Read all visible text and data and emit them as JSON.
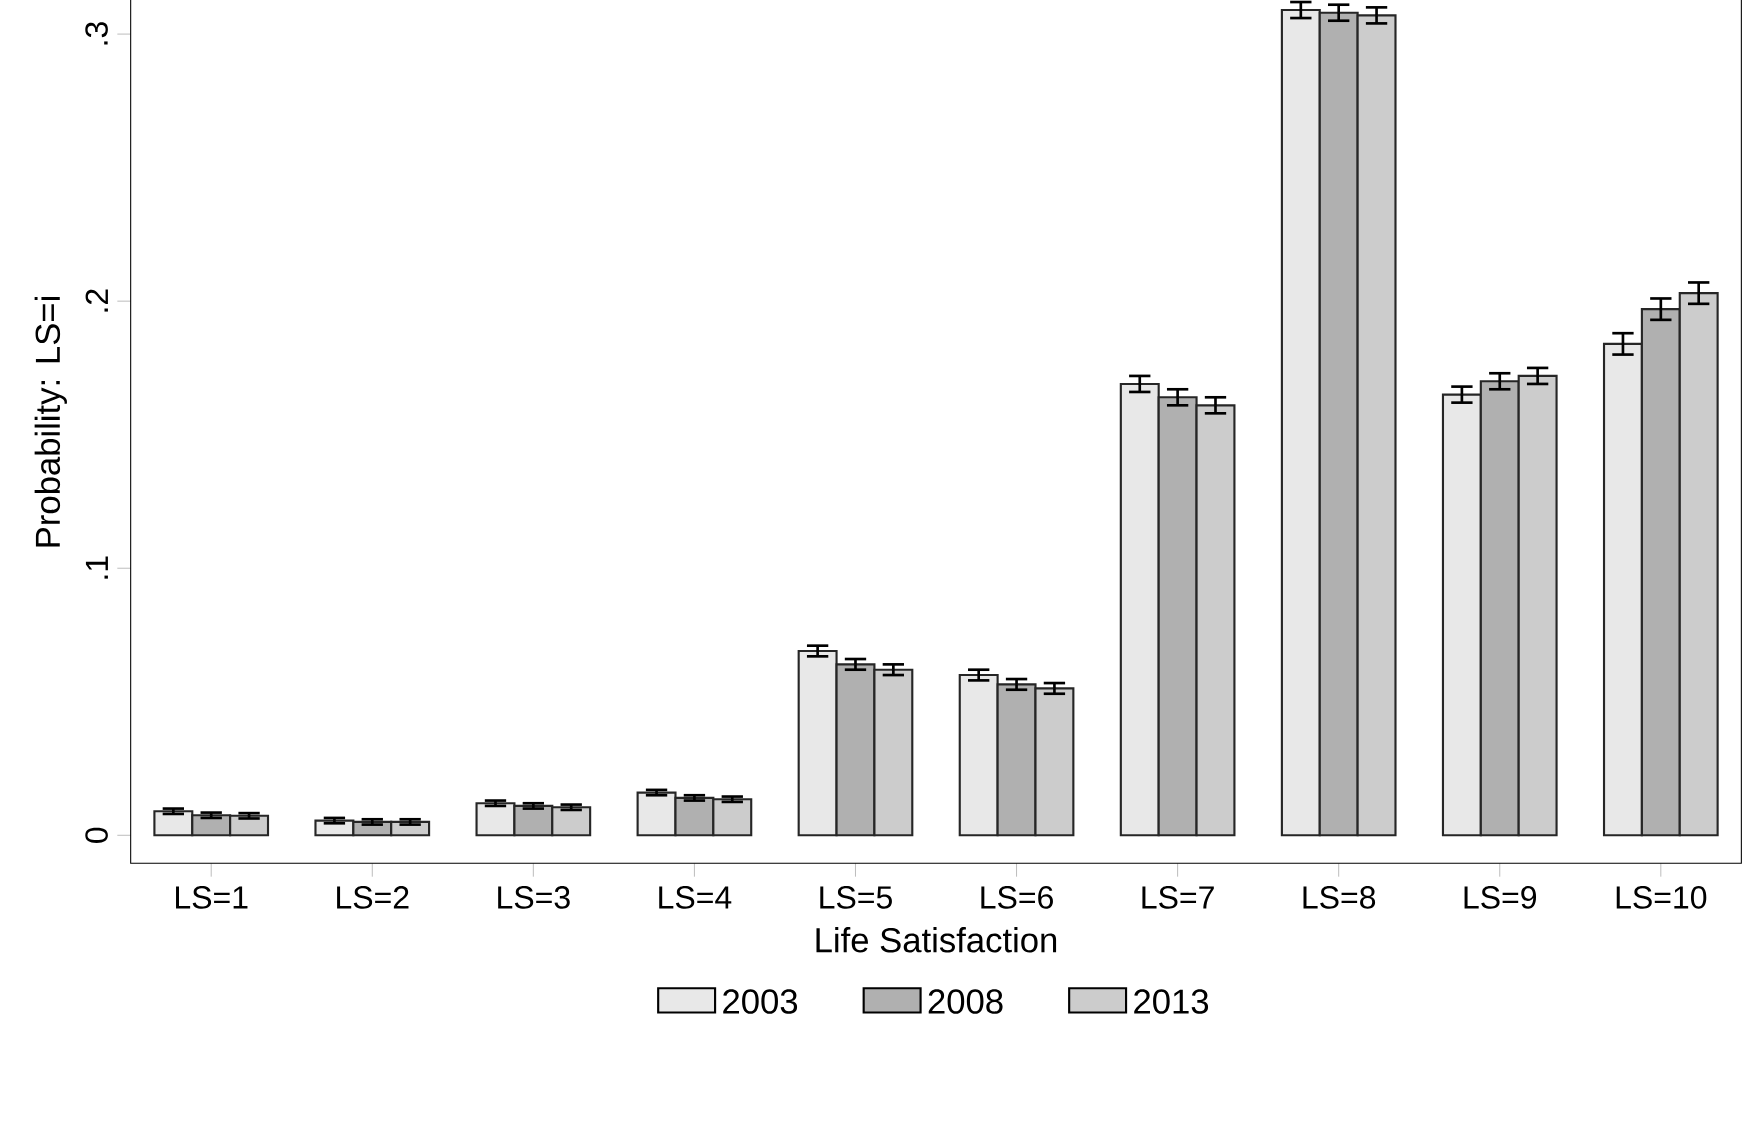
{
  "chart_data": {
    "type": "bar",
    "xlabel": "Life Satisfaction",
    "ylabel": "Probability: LS=i",
    "categories": [
      "LS=1",
      "LS=2",
      "LS=3",
      "LS=4",
      "LS=5",
      "LS=6",
      "LS=7",
      "LS=8",
      "LS=9",
      "LS=10"
    ],
    "series": [
      {
        "name": "2003",
        "color": "#e8e8e8",
        "values": [
          0.009,
          0.0055,
          0.012,
          0.016,
          0.069,
          0.06,
          0.169,
          0.309,
          0.165,
          0.184
        ],
        "errors": [
          0.001,
          0.001,
          0.001,
          0.001,
          0.002,
          0.002,
          0.003,
          0.003,
          0.003,
          0.004
        ]
      },
      {
        "name": "2008",
        "color": "#b0b0b0",
        "values": [
          0.0075,
          0.005,
          0.011,
          0.014,
          0.064,
          0.0565,
          0.164,
          0.308,
          0.17,
          0.197
        ],
        "errors": [
          0.001,
          0.001,
          0.001,
          0.001,
          0.002,
          0.002,
          0.003,
          0.003,
          0.003,
          0.004
        ]
      },
      {
        "name": "2013",
        "color": "#cccccc",
        "values": [
          0.0073,
          0.005,
          0.0105,
          0.0135,
          0.062,
          0.055,
          0.161,
          0.307,
          0.172,
          0.203
        ],
        "errors": [
          0.001,
          0.001,
          0.001,
          0.001,
          0.002,
          0.002,
          0.003,
          0.003,
          0.003,
          0.004
        ]
      }
    ],
    "ylim": [
      -0.0105,
      0.32
    ],
    "yticks": [
      0,
      {
        "value": 0.1,
        "label": ".1"
      },
      {
        "value": 0.2,
        "label": ".2"
      },
      {
        "value": 0.3,
        "label": ".3"
      }
    ],
    "grid": false,
    "legend": "bottom"
  }
}
